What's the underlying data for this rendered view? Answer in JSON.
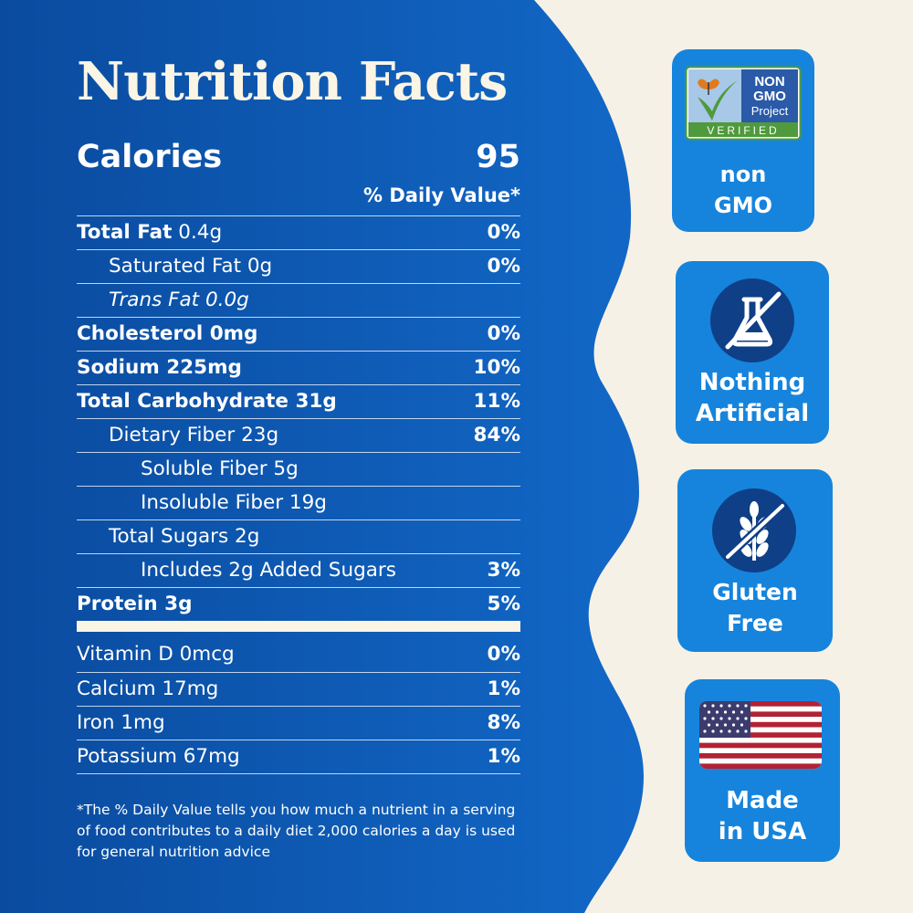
{
  "colors": {
    "panel_dark": "#0a4b9f",
    "panel_light": "#1268c7",
    "background": "#f6f1e6",
    "badge": "#1684dc",
    "icon_circle": "#0f3f86"
  },
  "nutrition": {
    "title": "Nutrition Facts",
    "calories_label": "Calories",
    "calories_value": "95",
    "daily_value_header": "% Daily Value*",
    "rows": [
      {
        "name": "Total Fat",
        "amount": " 0.4g",
        "dv": "0%"
      },
      {
        "name": "Saturated Fat 0g",
        "dv": "0%"
      },
      {
        "name": "Trans Fat 0.0g",
        "dv": ""
      },
      {
        "name": "Cholesterol 0mg",
        "dv": "0%"
      },
      {
        "name": "Sodium 225mg",
        "dv": "10%"
      },
      {
        "name": "Total Carbohydrate 31g",
        "dv": "11%"
      },
      {
        "name": "Dietary Fiber 23g",
        "dv": "84%"
      },
      {
        "name": "Soluble Fiber 5g",
        "dv": ""
      },
      {
        "name": "Insoluble Fiber 19g",
        "dv": ""
      },
      {
        "name": "Total Sugars 2g",
        "dv": ""
      },
      {
        "name": "Includes 2g Added Sugars",
        "dv": "3%"
      },
      {
        "name": "Protein 3g",
        "dv": "5%"
      }
    ],
    "vitamins": [
      {
        "name": "Vitamin D 0mcg",
        "dv": "0%"
      },
      {
        "name": "Calcium 17mg",
        "dv": "1%"
      },
      {
        "name": "Iron 1mg",
        "dv": "8%"
      },
      {
        "name": "Potassium 67mg",
        "dv": "1%"
      }
    ],
    "footnote": "*The % Daily Value tells you how much a nutrient in a serving of food contributes to a daily diet 2,000 calories a day is used for general nutrition advice"
  },
  "badges": {
    "non_gmo": {
      "logo_text": [
        "NON",
        "GMO",
        "Project",
        "VERIFIED"
      ],
      "caption_line1": "non",
      "caption_line2": "GMO",
      "icon": "non-gmo-project-verified-logo"
    },
    "nothing_artificial": {
      "caption_line1": "Nothing",
      "caption_line2": "Artificial",
      "icon": "crossed-out-flask-icon"
    },
    "gluten_free": {
      "caption_line1": "Gluten",
      "caption_line2": "Free",
      "icon": "crossed-out-wheat-icon"
    },
    "made_in_usa": {
      "caption_line1": "Made",
      "caption_line2": "in USA",
      "icon": "us-flag-icon"
    }
  }
}
